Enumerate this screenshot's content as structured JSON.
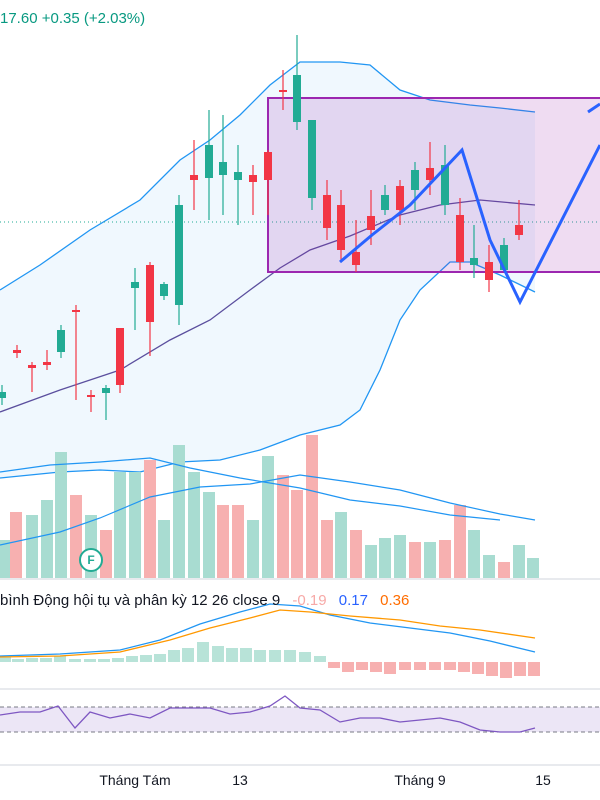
{
  "header": {
    "price": "17.60",
    "change": "+0.35",
    "change_pct": "(+2.03%)"
  },
  "macd": {
    "label": "bình Động hội tụ và phân kỳ 12 26 close 9",
    "histogram_value": "-0.19",
    "macd_value": "0.17",
    "signal_value": "0.36"
  },
  "markers": {
    "event_label": "F"
  },
  "x_axis": {
    "tick_labels": [
      "Tháng Tám",
      "13",
      "Tháng 9",
      "15"
    ]
  },
  "colors": {
    "up": "#22ab94",
    "down": "#f23645",
    "pattern_box": "#9c27b0",
    "pattern_line": "#2962ff",
    "bollinger": "#2196f3",
    "ma": "#5b4f9e",
    "macd_line": "#2196f3",
    "signal_line": "#ff9800",
    "rsi_band": "#7e57c2"
  },
  "chart_data": {
    "type": "candlestick",
    "price_axis_visible": false,
    "candles": [
      {
        "dir": "up"
      },
      {
        "dir": "down"
      },
      {
        "dir": "down"
      },
      {
        "dir": "down"
      },
      {
        "dir": "up"
      },
      {
        "dir": "down"
      },
      {
        "dir": "down"
      },
      {
        "dir": "up"
      },
      {
        "dir": "down"
      },
      {
        "dir": "up"
      },
      {
        "dir": "down"
      },
      {
        "dir": "up"
      },
      {
        "dir": "up"
      },
      {
        "dir": "down"
      },
      {
        "dir": "up"
      },
      {
        "dir": "up"
      },
      {
        "dir": "up"
      },
      {
        "dir": "down"
      },
      {
        "dir": "down"
      },
      {
        "dir": "down"
      },
      {
        "dir": "up"
      },
      {
        "dir": "up"
      },
      {
        "dir": "down"
      },
      {
        "dir": "down"
      },
      {
        "dir": "down"
      },
      {
        "dir": "down"
      },
      {
        "dir": "up"
      },
      {
        "dir": "down"
      },
      {
        "dir": "up"
      },
      {
        "dir": "down"
      },
      {
        "dir": "up"
      },
      {
        "dir": "down"
      },
      {
        "dir": "up"
      },
      {
        "dir": "down"
      },
      {
        "dir": "up"
      },
      {
        "dir": "down"
      },
      {
        "dir": "down"
      },
      {
        "dir": "down"
      },
      {
        "dir": "down"
      },
      {
        "dir": "down"
      },
      {
        "dir": "up"
      },
      {
        "dir": "up"
      }
    ]
  }
}
